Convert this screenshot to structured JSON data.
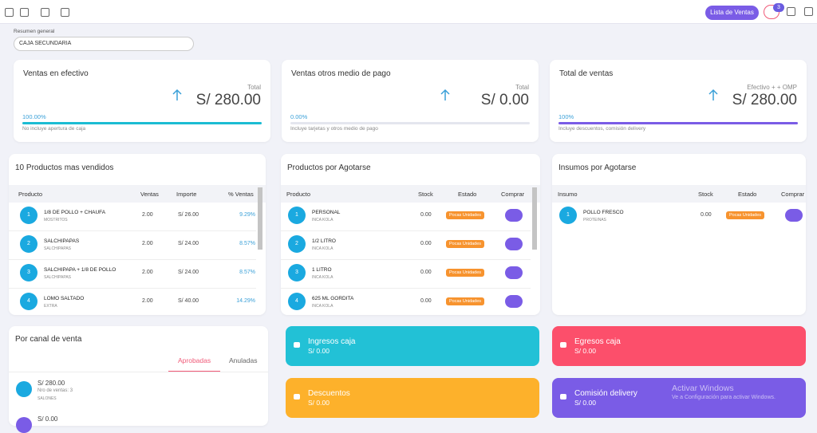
{
  "topbar": {
    "button": "Lista de Ventas",
    "badge": "3"
  },
  "summary": {
    "label": "Resumen general",
    "select": "CAJA SECUNDARIA"
  },
  "cards": [
    {
      "title": "Ventas en efectivo",
      "label": "Total",
      "amount": "S/ 280.00",
      "percent": "100.00%",
      "note": "No incluye apertura de caja",
      "color": "#1bbcd3"
    },
    {
      "title": "Ventas otros medio de pago",
      "label": "Total",
      "amount": "S/ 0.00",
      "percent": "0.00%",
      "note": "Incluye tarjetas y otros medio de pago",
      "color": "#1bbcd3"
    },
    {
      "title": "Total de ventas",
      "label": "Efectivo + + OMP",
      "amount": "S/ 280.00",
      "percent": "100%",
      "note": "Incluye descuentos, comisión delivery",
      "color": "#7a5ce6"
    }
  ],
  "top_products": {
    "title": "10 Productos mas vendidos",
    "headers": [
      "Producto",
      "Ventas",
      "Importe",
      "% Ventas"
    ],
    "rows": [
      {
        "rank": "1",
        "name": "1/8 DE POLLO + CHAUFA",
        "group": "MOSTRITOS",
        "sales": "2.00",
        "amount": "S/ 26.00",
        "share": "9.29%"
      },
      {
        "rank": "2",
        "name": "SALCHIPAPAS",
        "group": "SALCHIPAPAS",
        "sales": "2.00",
        "amount": "S/ 24.00",
        "share": "8.57%"
      },
      {
        "rank": "3",
        "name": "SALCHIPAPA + 1/8 DE POLLO",
        "group": "SALCHIPAPAS",
        "sales": "2.00",
        "amount": "S/ 24.00",
        "share": "8.57%"
      },
      {
        "rank": "4",
        "name": "LOMO SALTADO",
        "group": "EXTRA",
        "sales": "2.00",
        "amount": "S/ 40.00",
        "share": "14.29%"
      }
    ]
  },
  "low_products": {
    "title": "Productos por Agotarse",
    "headers": [
      "Producto",
      "Stock",
      "Estado",
      "Comprar"
    ],
    "rows": [
      {
        "rank": "1",
        "name": "PERSONAL",
        "group": "INCA KOLA",
        "stock": "0.00",
        "status": "Pocas Unidades"
      },
      {
        "rank": "2",
        "name": "1/2 LITRO",
        "group": "INCA KOLA",
        "stock": "0.00",
        "status": "Pocas Unidades"
      },
      {
        "rank": "3",
        "name": "1 LITRO",
        "group": "INCA KOLA",
        "stock": "0.00",
        "status": "Pocas Unidades"
      },
      {
        "rank": "4",
        "name": "625 ML GORDITA",
        "group": "INCA KOLA",
        "stock": "0.00",
        "status": "Pocas Unidades"
      }
    ]
  },
  "low_supplies": {
    "title": "Insumos por Agotarse",
    "headers": [
      "Insumo",
      "Stock",
      "Estado",
      "Comprar"
    ],
    "rows": [
      {
        "rank": "1",
        "name": "POLLO FRESCO",
        "group": "PROTEINAS",
        "stock": "0.00",
        "status": "Pocas Unidades"
      }
    ]
  },
  "channels": {
    "title": "Por canal de venta",
    "tabs": [
      "Aprobadas",
      "Anuladas"
    ],
    "items": [
      {
        "amount": "S/ 280.00",
        "count": "Nro de ventas: 3",
        "name": "SALONES"
      },
      {
        "amount": "S/ 0.00"
      }
    ]
  },
  "tiles": [
    {
      "title": "Ingresos caja",
      "amount": "S/ 0.00",
      "color": "#22c1d6"
    },
    {
      "title": "Egresos caja",
      "amount": "S/ 0.00",
      "color": "#fc4f6b"
    },
    {
      "title": "Descuentos",
      "amount": "S/ 0.00",
      "color": "#fdb12b"
    },
    {
      "title": "Comisión delivery",
      "amount": "S/ 0.00",
      "color": "#7a5ce6"
    }
  ],
  "watermark": {
    "title": "Activar Windows",
    "text": "Ve a Configuración para activar Windows."
  }
}
